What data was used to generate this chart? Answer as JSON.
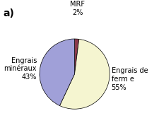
{
  "title_label": "a)",
  "slices": [
    {
      "label": "MRF\n2%",
      "value": 2,
      "color": "#8B3A4A"
    },
    {
      "label": "Engrais de\nferm e\n55%",
      "value": 55,
      "color": "#F5F5D0"
    },
    {
      "label": "Engrais\nminéraux\n43%",
      "value": 43,
      "color": "#A0A0D8"
    }
  ],
  "startangle": 90,
  "background_color": "#ffffff",
  "edge_color": "#000000",
  "edge_width": 0.5,
  "figsize": [
    2.26,
    1.74
  ],
  "dpi": 100,
  "title_fontsize": 10,
  "label_fontsize": 7.0
}
